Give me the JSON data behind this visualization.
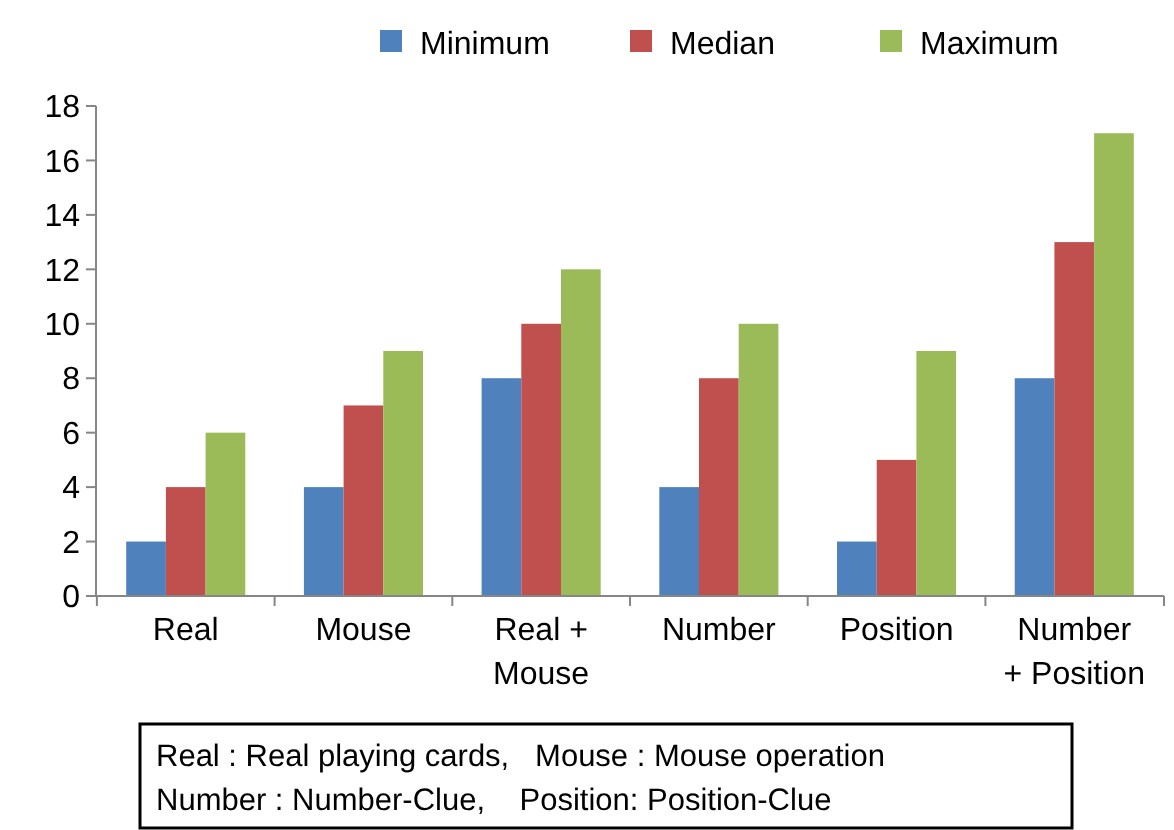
{
  "chart_data": {
    "type": "bar",
    "categories": [
      "Real",
      "Mouse",
      "Real +\nMouse",
      "Number",
      "Position",
      "Number\n+ Position"
    ],
    "series": [
      {
        "name": "Minimum",
        "color": "#4f81bd",
        "values": [
          2,
          4,
          8,
          4,
          2,
          8
        ]
      },
      {
        "name": "Median",
        "color": "#c0504d",
        "values": [
          4,
          7,
          10,
          8,
          5,
          13
        ]
      },
      {
        "name": "Maximum",
        "color": "#9bbb59",
        "values": [
          6,
          9,
          12,
          10,
          9,
          17
        ]
      }
    ],
    "ylim": [
      0,
      18
    ],
    "yticks": [
      0,
      2,
      4,
      6,
      8,
      10,
      12,
      14,
      16,
      18
    ],
    "grid": false,
    "legend": "top",
    "annotations": [
      "Real : Real playing cards,   Mouse : Mouse operation",
      "Number : Number-Clue,    Position: Position-Clue"
    ]
  }
}
